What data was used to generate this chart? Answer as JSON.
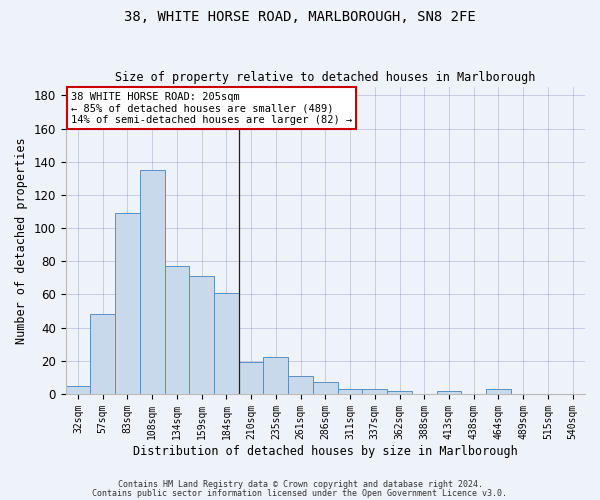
{
  "title1": "38, WHITE HORSE ROAD, MARLBOROUGH, SN8 2FE",
  "title2": "Size of property relative to detached houses in Marlborough",
  "xlabel": "Distribution of detached houses by size in Marlborough",
  "ylabel": "Number of detached properties",
  "bin_labels": [
    "32sqm",
    "57sqm",
    "83sqm",
    "108sqm",
    "134sqm",
    "159sqm",
    "184sqm",
    "210sqm",
    "235sqm",
    "261sqm",
    "286sqm",
    "311sqm",
    "337sqm",
    "362sqm",
    "388sqm",
    "413sqm",
    "438sqm",
    "464sqm",
    "489sqm",
    "515sqm",
    "540sqm"
  ],
  "bar_heights": [
    5,
    48,
    109,
    135,
    77,
    71,
    61,
    19,
    22,
    11,
    7,
    3,
    3,
    2,
    0,
    2,
    0,
    3,
    0,
    0,
    0
  ],
  "bar_color": "#c9d9ec",
  "bar_edge_color": "#5a8fc3",
  "vline_x": 6.5,
  "ylim": [
    0,
    185
  ],
  "yticks": [
    0,
    20,
    40,
    60,
    80,
    100,
    120,
    140,
    160,
    180
  ],
  "annotation_line1": "38 WHITE HORSE ROAD: 205sqm",
  "annotation_line2": "← 85% of detached houses are smaller (489)",
  "annotation_line3": "14% of semi-detached houses are larger (82) →",
  "annotation_box_color": "#cc0000",
  "footer1": "Contains HM Land Registry data © Crown copyright and database right 2024.",
  "footer2": "Contains public sector information licensed under the Open Government Licence v3.0.",
  "background_color": "#eef2f9"
}
